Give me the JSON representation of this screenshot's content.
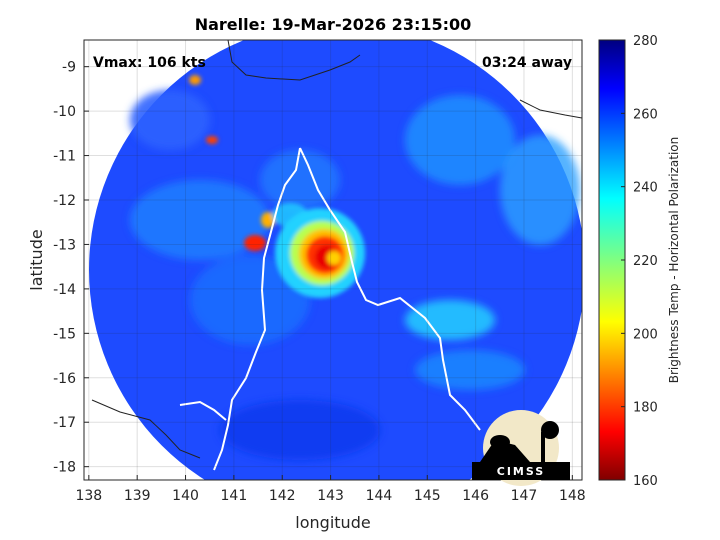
{
  "chart_data": {
    "type": "heatmap",
    "title": "Narelle: 19-Mar-2026 23:15:00",
    "xlabel": "longitude",
    "ylabel": "latitude",
    "xlim": [
      137.9,
      148.2
    ],
    "ylim": [
      -18.3,
      -8.4
    ],
    "xticks": [
      "138",
      "139",
      "140",
      "141",
      "142",
      "143",
      "144",
      "145",
      "146",
      "147",
      "148"
    ],
    "yticks": [
      "-9",
      "-10",
      "-11",
      "-12",
      "-13",
      "-14",
      "-15",
      "-16",
      "-17",
      "-18"
    ],
    "grid": true,
    "annotations": {
      "vmax": "Vmax: 106 kts",
      "time_away": "03:24 away"
    },
    "colorbar": {
      "label": "Brightness Temp - Horizontal Polarization",
      "range": [
        160,
        280
      ],
      "ticks": [
        "160",
        "180",
        "200",
        "220",
        "240",
        "260",
        "280"
      ],
      "colormap": "jet",
      "placement": "right"
    },
    "storm_center": {
      "lon": 142.9,
      "lat": -13.3,
      "min_tb": 165
    },
    "swath": {
      "center_lon": 143.0,
      "center_lat": -13.6,
      "radius_deg": 5.2
    },
    "logo": "CIMSS"
  }
}
